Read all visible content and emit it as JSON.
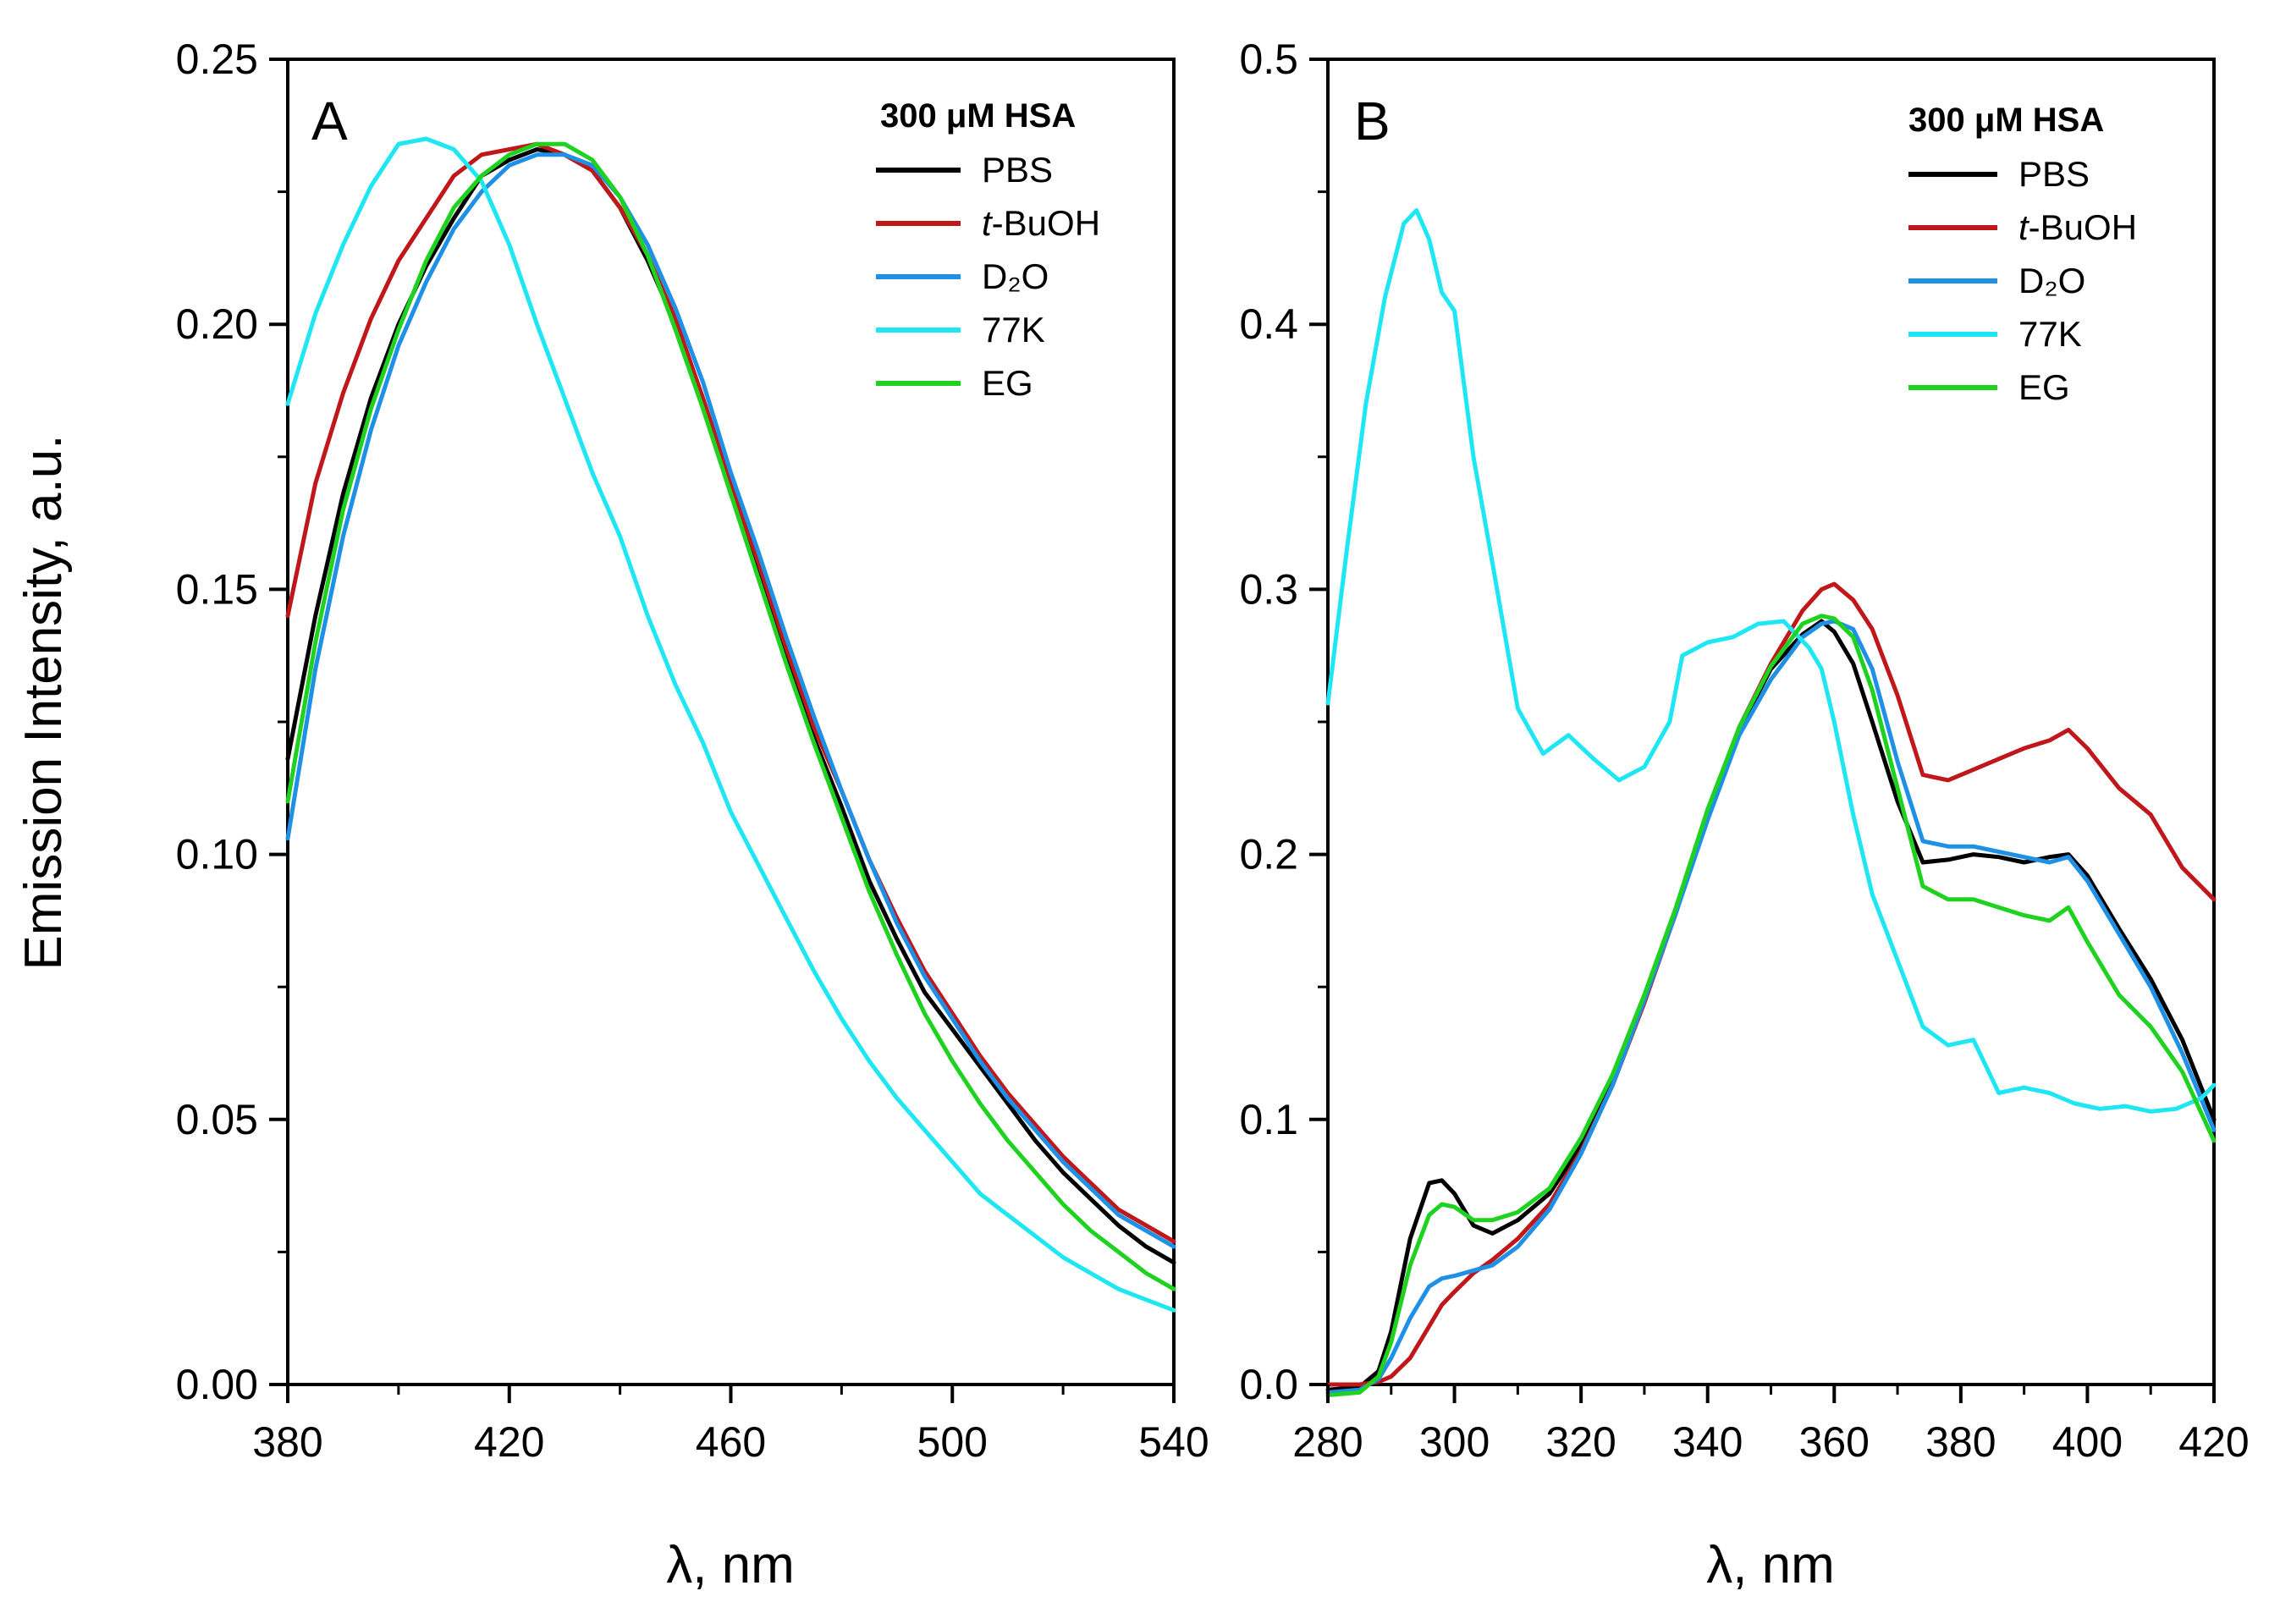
{
  "ylabel": "Emission Intensity, a.u.",
  "colors": {
    "PBS": "#000000",
    "t-BuOH": "#c0171b",
    "D2O": "#1e90e6",
    "77K": "#1fe6f3",
    "EG": "#20d220"
  },
  "chart_data": [
    {
      "type": "line",
      "panel": "A",
      "xlabel": "λ, nm",
      "ylabel": "Emission Intensity, a.u.",
      "xlim": [
        380,
        540
      ],
      "ylim": [
        0,
        0.25
      ],
      "x_ticks": [
        "380",
        "420",
        "460",
        "500",
        "540"
      ],
      "y_ticks": [
        "0.00",
        "0.05",
        "0.10",
        "0.15",
        "0.20",
        "0.25"
      ],
      "legend": {
        "title": "300 μM HSA",
        "position": "top-right",
        "entries": [
          {
            "key": "PBS",
            "prefix": "",
            "label": "PBS"
          },
          {
            "key": "t-BuOH",
            "prefix": "t",
            "label": "-BuOH"
          },
          {
            "key": "D2O",
            "prefix": "",
            "label": "D₂O"
          },
          {
            "key": "77K",
            "prefix": "",
            "label": "77K"
          },
          {
            "key": "EG",
            "prefix": "",
            "label": "EG"
          }
        ]
      },
      "series": [
        {
          "name": "PBS",
          "x": [
            380,
            385,
            390,
            395,
            400,
            405,
            410,
            415,
            420,
            425,
            430,
            435,
            440,
            445,
            450,
            455,
            460,
            465,
            470,
            475,
            480,
            485,
            490,
            495,
            500,
            505,
            510,
            515,
            520,
            525,
            530,
            535,
            540
          ],
          "y": [
            0.118,
            0.145,
            0.168,
            0.186,
            0.2,
            0.211,
            0.22,
            0.228,
            0.231,
            0.233,
            0.232,
            0.229,
            0.222,
            0.212,
            0.2,
            0.185,
            0.168,
            0.153,
            0.137,
            0.122,
            0.109,
            0.095,
            0.084,
            0.074,
            0.067,
            0.06,
            0.053,
            0.046,
            0.04,
            0.035,
            0.03,
            0.026,
            0.023
          ]
        },
        {
          "name": "t-BuOH",
          "x": [
            380,
            385,
            390,
            395,
            400,
            405,
            410,
            415,
            420,
            425,
            430,
            435,
            440,
            445,
            450,
            455,
            460,
            465,
            470,
            475,
            480,
            485,
            490,
            495,
            500,
            505,
            510,
            515,
            520,
            525,
            530,
            535,
            540
          ],
          "y": [
            0.145,
            0.17,
            0.187,
            0.201,
            0.212,
            0.22,
            0.228,
            0.232,
            0.233,
            0.234,
            0.232,
            0.229,
            0.222,
            0.213,
            0.201,
            0.186,
            0.17,
            0.155,
            0.139,
            0.124,
            0.112,
            0.099,
            0.088,
            0.078,
            0.07,
            0.062,
            0.055,
            0.049,
            0.043,
            0.038,
            0.033,
            0.03,
            0.027
          ]
        },
        {
          "name": "D2O",
          "x": [
            380,
            385,
            390,
            395,
            400,
            405,
            410,
            415,
            420,
            425,
            430,
            435,
            440,
            445,
            450,
            455,
            460,
            465,
            470,
            475,
            480,
            485,
            490,
            495,
            500,
            505,
            510,
            515,
            520,
            525,
            530,
            535,
            540
          ],
          "y": [
            0.103,
            0.135,
            0.16,
            0.18,
            0.196,
            0.208,
            0.218,
            0.225,
            0.23,
            0.232,
            0.232,
            0.23,
            0.224,
            0.215,
            0.203,
            0.189,
            0.172,
            0.157,
            0.141,
            0.126,
            0.112,
            0.099,
            0.087,
            0.077,
            0.069,
            0.061,
            0.054,
            0.048,
            0.042,
            0.037,
            0.032,
            0.029,
            0.026
          ]
        },
        {
          "name": "77K",
          "x": [
            380,
            385,
            390,
            395,
            400,
            405,
            410,
            415,
            420,
            425,
            430,
            435,
            440,
            445,
            450,
            455,
            460,
            465,
            470,
            475,
            480,
            485,
            490,
            495,
            500,
            505,
            510,
            515,
            520,
            525,
            530,
            535,
            540
          ],
          "y": [
            0.185,
            0.202,
            0.215,
            0.226,
            0.234,
            0.235,
            0.233,
            0.227,
            0.215,
            0.2,
            0.186,
            0.172,
            0.16,
            0.145,
            0.132,
            0.121,
            0.108,
            0.098,
            0.088,
            0.078,
            0.069,
            0.061,
            0.054,
            0.048,
            0.042,
            0.036,
            0.032,
            0.028,
            0.024,
            0.021,
            0.018,
            0.016,
            0.014
          ]
        },
        {
          "name": "EG",
          "x": [
            380,
            385,
            390,
            395,
            400,
            405,
            410,
            415,
            420,
            425,
            430,
            435,
            440,
            445,
            450,
            455,
            460,
            465,
            470,
            475,
            480,
            485,
            490,
            495,
            500,
            505,
            510,
            515,
            520,
            525,
            530,
            535,
            540
          ],
          "y": [
            0.11,
            0.14,
            0.165,
            0.184,
            0.199,
            0.212,
            0.222,
            0.228,
            0.232,
            0.234,
            0.234,
            0.231,
            0.224,
            0.213,
            0.199,
            0.184,
            0.168,
            0.152,
            0.136,
            0.121,
            0.107,
            0.093,
            0.081,
            0.07,
            0.061,
            0.053,
            0.046,
            0.04,
            0.034,
            0.029,
            0.025,
            0.021,
            0.018
          ]
        }
      ]
    },
    {
      "type": "line",
      "panel": "B",
      "xlabel": "λ, nm",
      "ylabel": "",
      "xlim": [
        280,
        420
      ],
      "ylim": [
        0,
        0.5
      ],
      "x_ticks": [
        "280",
        "300",
        "320",
        "340",
        "360",
        "380",
        "400",
        "420"
      ],
      "y_ticks": [
        "0.0",
        "0.1",
        "0.2",
        "0.3",
        "0.4",
        "0.5"
      ],
      "legend": {
        "title": "300 μM HSA",
        "position": "top-right",
        "entries": [
          {
            "key": "PBS",
            "prefix": "",
            "label": "PBS"
          },
          {
            "key": "t-BuOH",
            "prefix": "t",
            "label": "-BuOH"
          },
          {
            "key": "D2O",
            "prefix": "",
            "label": "D₂O"
          },
          {
            "key": "77K",
            "prefix": "",
            "label": "77K"
          },
          {
            "key": "EG",
            "prefix": "",
            "label": "EG"
          }
        ]
      },
      "series": [
        {
          "name": "PBS",
          "x": [
            280,
            285,
            288,
            290,
            293,
            296,
            298,
            300,
            303,
            306,
            310,
            315,
            320,
            325,
            330,
            335,
            340,
            345,
            350,
            355,
            358,
            360,
            363,
            366,
            370,
            374,
            378,
            382,
            386,
            390,
            394,
            397,
            400,
            405,
            410,
            415,
            420
          ],
          "y": [
            -0.002,
            -0.001,
            0.005,
            0.02,
            0.055,
            0.076,
            0.077,
            0.072,
            0.06,
            0.057,
            0.062,
            0.072,
            0.09,
            0.115,
            0.145,
            0.178,
            0.215,
            0.247,
            0.27,
            0.283,
            0.288,
            0.284,
            0.272,
            0.25,
            0.22,
            0.197,
            0.198,
            0.2,
            0.199,
            0.197,
            0.199,
            0.2,
            0.192,
            0.172,
            0.153,
            0.13,
            0.1
          ]
        },
        {
          "name": "t-BuOH",
          "x": [
            280,
            285,
            288,
            290,
            293,
            296,
            298,
            300,
            303,
            306,
            310,
            315,
            320,
            325,
            330,
            335,
            340,
            345,
            350,
            355,
            358,
            360,
            363,
            366,
            370,
            374,
            378,
            382,
            386,
            390,
            394,
            397,
            400,
            405,
            410,
            415,
            420
          ],
          "y": [
            0.0,
            0.0,
            0.001,
            0.003,
            0.01,
            0.022,
            0.03,
            0.035,
            0.042,
            0.047,
            0.055,
            0.068,
            0.088,
            0.113,
            0.144,
            0.178,
            0.215,
            0.248,
            0.272,
            0.292,
            0.3,
            0.302,
            0.296,
            0.285,
            0.26,
            0.23,
            0.228,
            0.232,
            0.236,
            0.24,
            0.243,
            0.247,
            0.24,
            0.225,
            0.215,
            0.195,
            0.183
          ]
        },
        {
          "name": "D2O",
          "x": [
            280,
            285,
            288,
            290,
            293,
            296,
            298,
            300,
            303,
            306,
            310,
            315,
            320,
            325,
            330,
            335,
            340,
            345,
            350,
            355,
            358,
            360,
            363,
            366,
            370,
            374,
            378,
            382,
            386,
            390,
            394,
            397,
            400,
            405,
            410,
            415,
            420
          ],
          "y": [
            -0.003,
            -0.002,
            0.002,
            0.01,
            0.025,
            0.037,
            0.04,
            0.041,
            0.043,
            0.045,
            0.052,
            0.066,
            0.087,
            0.113,
            0.145,
            0.178,
            0.213,
            0.245,
            0.266,
            0.282,
            0.287,
            0.288,
            0.285,
            0.27,
            0.235,
            0.205,
            0.203,
            0.203,
            0.201,
            0.199,
            0.197,
            0.199,
            0.19,
            0.17,
            0.15,
            0.125,
            0.096
          ]
        },
        {
          "name": "77K",
          "x": [
            280,
            283,
            286,
            289,
            292,
            294,
            296,
            298,
            300,
            303,
            306,
            310,
            314,
            318,
            322,
            326,
            330,
            334,
            336,
            340,
            344,
            348,
            352,
            356,
            358,
            360,
            363,
            366,
            370,
            374,
            378,
            382,
            386,
            390,
            394,
            398,
            402,
            406,
            410,
            414,
            418,
            420
          ],
          "y": [
            0.257,
            0.315,
            0.37,
            0.41,
            0.438,
            0.443,
            0.432,
            0.412,
            0.405,
            0.35,
            0.31,
            0.255,
            0.238,
            0.245,
            0.236,
            0.228,
            0.233,
            0.25,
            0.275,
            0.28,
            0.282,
            0.287,
            0.288,
            0.278,
            0.27,
            0.25,
            0.215,
            0.185,
            0.16,
            0.135,
            0.128,
            0.13,
            0.11,
            0.112,
            0.11,
            0.106,
            0.104,
            0.105,
            0.103,
            0.104,
            0.108,
            0.113
          ]
        },
        {
          "name": "EG",
          "x": [
            280,
            285,
            288,
            290,
            293,
            296,
            298,
            300,
            303,
            306,
            310,
            315,
            320,
            325,
            330,
            335,
            340,
            345,
            350,
            355,
            358,
            360,
            363,
            366,
            370,
            374,
            378,
            382,
            386,
            390,
            394,
            397,
            400,
            405,
            410,
            415,
            420
          ],
          "y": [
            -0.004,
            -0.003,
            0.003,
            0.016,
            0.045,
            0.064,
            0.068,
            0.067,
            0.062,
            0.062,
            0.065,
            0.074,
            0.093,
            0.117,
            0.147,
            0.18,
            0.217,
            0.248,
            0.271,
            0.287,
            0.29,
            0.289,
            0.282,
            0.262,
            0.225,
            0.188,
            0.183,
            0.183,
            0.18,
            0.177,
            0.175,
            0.18,
            0.167,
            0.147,
            0.135,
            0.118,
            0.092
          ]
        }
      ]
    }
  ]
}
